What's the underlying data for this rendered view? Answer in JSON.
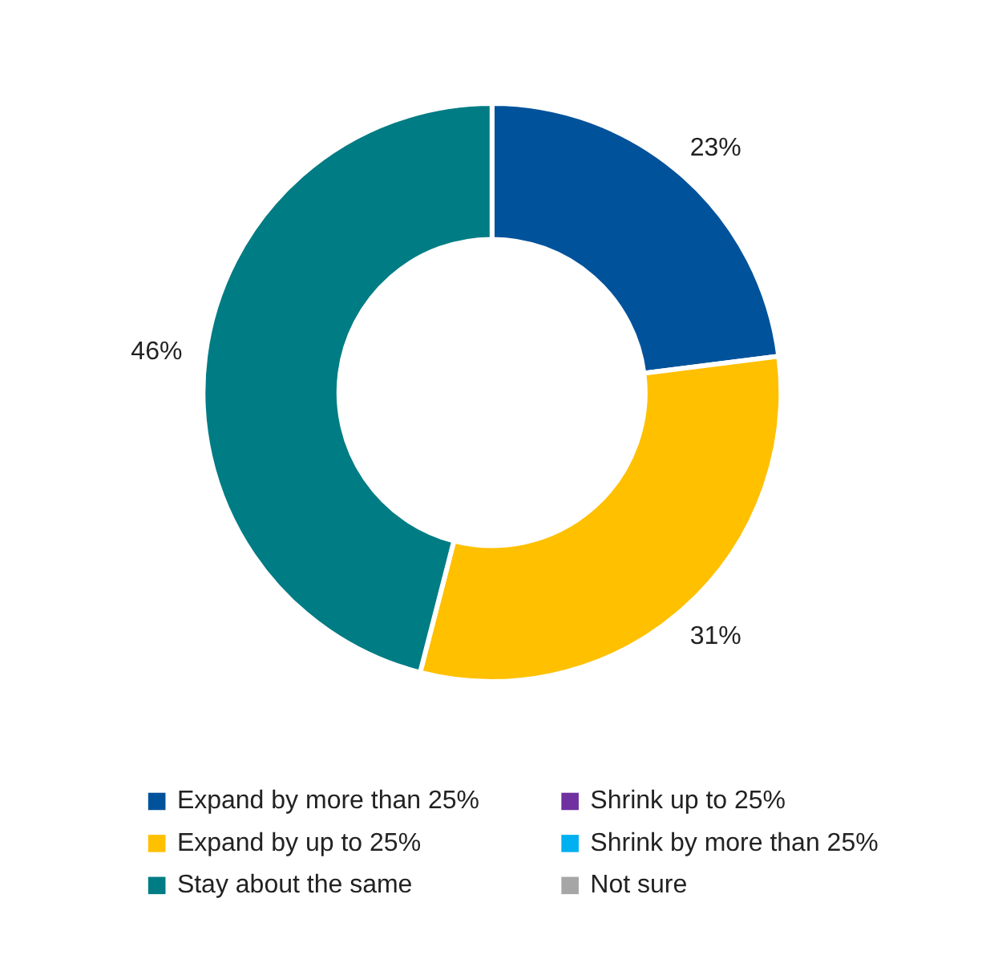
{
  "chart_data": {
    "type": "donut",
    "categories": [
      "Expand by more than 25%",
      "Expand by up to 25%",
      "Stay about the same",
      "Shrink up to 25%",
      "Shrink by more than 25%",
      "Not sure"
    ],
    "values": [
      23,
      31,
      46,
      0,
      0,
      0
    ],
    "colors": [
      "#00529b",
      "#ffc000",
      "#007c84",
      "#7030a0",
      "#00b0f0",
      "#a6a6a6"
    ],
    "value_labels": [
      "23%",
      "31%",
      "46%",
      null,
      null,
      null
    ],
    "legend": "bottom"
  }
}
